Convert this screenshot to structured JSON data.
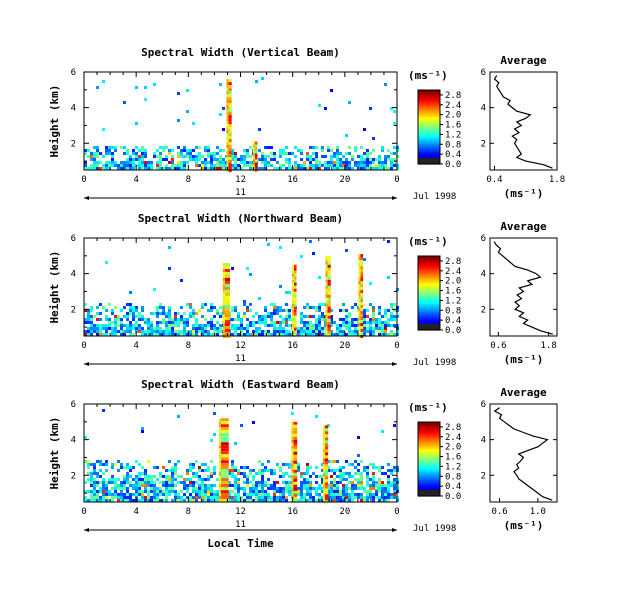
{
  "chart_data": [
    {
      "type": "heatmap",
      "title": "Spectral Width (Vertical Beam)",
      "ylabel": "Height (km)",
      "xlabel": "",
      "x_ticks": [
        "0",
        "4",
        "8",
        "12",
        "16",
        "20",
        "0"
      ],
      "y_ticks": [
        "2",
        "4",
        "6"
      ],
      "xlim": [
        0,
        24
      ],
      "ylim": [
        0.5,
        6
      ],
      "day_label": "11",
      "date_label": "Jul 1998",
      "colorbar": {
        "unit": "(ms⁻¹)",
        "ticks": [
          "0.0",
          "0.4",
          "0.8",
          "1.2",
          "1.6",
          "2.0",
          "2.4",
          "2.8"
        ],
        "range": [
          0,
          3.0
        ]
      },
      "spikes": [
        {
          "x": 11.2,
          "top": 5.6,
          "w": 0.25
        },
        {
          "x": 13.2,
          "top": 2.1,
          "w": 0.2
        }
      ],
      "layer_top": 2.0,
      "average_profile": {
        "title": "Average",
        "xlabel": "(ms⁻¹)",
        "x_ticks": [
          "0.4",
          "1.8"
        ],
        "xlim": [
          0.3,
          1.8
        ],
        "y_ticks": [
          "2",
          "4",
          "6"
        ],
        "ylim": [
          0.5,
          6
        ],
        "heights": [
          0.6,
          0.8,
          1.0,
          1.2,
          1.4,
          1.6,
          1.8,
          2.0,
          2.2,
          2.4,
          2.6,
          2.8,
          3.0,
          3.2,
          3.4,
          3.6,
          3.8,
          4.0,
          4.2,
          4.4,
          4.6,
          4.8,
          5.0,
          5.2,
          5.4,
          5.6,
          5.8
        ],
        "values": [
          1.7,
          1.5,
          1.1,
          0.9,
          1.0,
          0.95,
          0.9,
          0.85,
          0.9,
          0.8,
          0.95,
          0.85,
          1.0,
          0.9,
          1.1,
          1.2,
          0.9,
          0.8,
          0.7,
          0.75,
          0.6,
          0.55,
          0.5,
          0.45,
          0.5,
          0.4,
          0.45
        ]
      }
    },
    {
      "type": "heatmap",
      "title": "Spectral Width (Northward Beam)",
      "ylabel": "Height (km)",
      "xlabel": "",
      "x_ticks": [
        "0",
        "4",
        "8",
        "12",
        "16",
        "20",
        "0"
      ],
      "y_ticks": [
        "2",
        "4",
        "6"
      ],
      "xlim": [
        0,
        24
      ],
      "ylim": [
        0.5,
        6
      ],
      "day_label": "11",
      "date_label": "Jul 1998",
      "colorbar": {
        "unit": "(ms⁻¹)",
        "ticks": [
          "0.0",
          "0.4",
          "0.8",
          "1.2",
          "1.6",
          "2.0",
          "2.4",
          "2.8"
        ],
        "range": [
          0,
          3.0
        ]
      },
      "spikes": [
        {
          "x": 11.0,
          "top": 4.6,
          "w": 0.4
        },
        {
          "x": 16.2,
          "top": 4.5,
          "w": 0.2
        },
        {
          "x": 18.8,
          "top": 5.0,
          "w": 0.25
        },
        {
          "x": 21.3,
          "top": 5.1,
          "w": 0.2
        }
      ],
      "layer_top": 2.4,
      "average_profile": {
        "title": "Average",
        "xlabel": "(ms⁻¹)",
        "x_ticks": [
          "0.6",
          "1.8"
        ],
        "xlim": [
          0.4,
          2.0
        ],
        "y_ticks": [
          "2",
          "4",
          "6"
        ],
        "ylim": [
          0.5,
          6
        ],
        "heights": [
          0.6,
          0.8,
          1.0,
          1.2,
          1.4,
          1.6,
          1.8,
          2.0,
          2.2,
          2.4,
          2.6,
          2.8,
          3.0,
          3.2,
          3.4,
          3.6,
          3.8,
          4.0,
          4.2,
          4.4,
          4.6,
          4.8,
          5.0,
          5.2,
          5.4,
          5.6,
          5.8
        ],
        "values": [
          1.9,
          1.6,
          1.4,
          1.2,
          1.3,
          1.1,
          1.2,
          1.0,
          1.1,
          1.0,
          1.15,
          1.05,
          1.2,
          1.1,
          1.4,
          1.3,
          1.6,
          1.5,
          1.3,
          1.0,
          0.9,
          0.8,
          0.7,
          0.6,
          0.65,
          0.55,
          0.5
        ]
      }
    },
    {
      "type": "heatmap",
      "title": "Spectral Width (Eastward Beam)",
      "ylabel": "Height (km)",
      "xlabel": "Local Time",
      "x_ticks": [
        "0",
        "4",
        "8",
        "12",
        "16",
        "20",
        "0"
      ],
      "y_ticks": [
        "2",
        "4",
        "6"
      ],
      "xlim": [
        0,
        24
      ],
      "ylim": [
        0.5,
        6
      ],
      "day_label": "11",
      "date_label": "Jul 1998",
      "colorbar": {
        "unit": "(ms⁻¹)",
        "ticks": [
          "0.0",
          "0.4",
          "0.8",
          "1.2",
          "1.6",
          "2.0",
          "2.4",
          "2.8"
        ],
        "range": [
          0,
          3.0
        ]
      },
      "spikes": [
        {
          "x": 10.8,
          "top": 5.2,
          "w": 0.6
        },
        {
          "x": 16.2,
          "top": 5.0,
          "w": 0.3
        },
        {
          "x": 18.6,
          "top": 4.8,
          "w": 0.25
        }
      ],
      "layer_top": 3.0,
      "average_profile": {
        "title": "Average",
        "xlabel": "(ms⁻¹)",
        "x_ticks": [
          "0.6",
          "1.0"
        ],
        "xlim": [
          0.5,
          1.2
        ],
        "y_ticks": [
          "2",
          "4",
          "6"
        ],
        "ylim": [
          0.5,
          6
        ],
        "heights": [
          0.6,
          0.8,
          1.0,
          1.2,
          1.4,
          1.6,
          1.8,
          2.0,
          2.2,
          2.4,
          2.6,
          2.8,
          3.0,
          3.2,
          3.4,
          3.6,
          3.8,
          4.0,
          4.2,
          4.4,
          4.6,
          4.8,
          5.0,
          5.2,
          5.4,
          5.6,
          5.8
        ],
        "values": [
          1.15,
          1.05,
          1.0,
          0.95,
          0.9,
          0.85,
          0.8,
          0.78,
          0.75,
          0.8,
          0.78,
          0.82,
          0.85,
          0.8,
          0.9,
          1.0,
          1.05,
          1.1,
          0.95,
          0.85,
          0.75,
          0.7,
          0.65,
          0.6,
          0.62,
          0.55,
          0.6
        ]
      }
    }
  ]
}
